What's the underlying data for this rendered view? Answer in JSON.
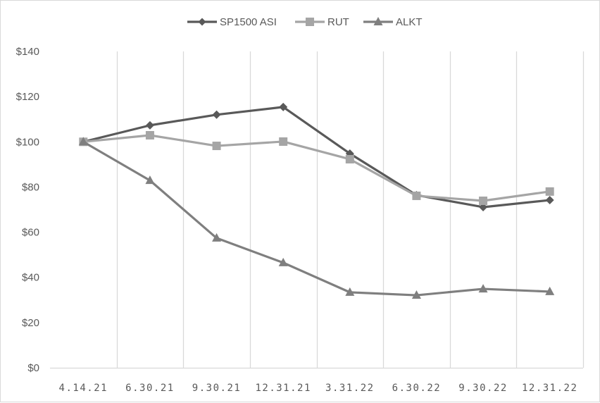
{
  "chart_data": {
    "type": "line",
    "title": "",
    "xlabel": "",
    "ylabel": "",
    "categories": [
      "4.14.21",
      "6.30.21",
      "9.30.21",
      "12.31.21",
      "3.31.22",
      "6.30.22",
      "9.30.22",
      "12.31.22"
    ],
    "series": [
      {
        "name": "SP1500 ASI",
        "color": "#595959",
        "marker": "diamond",
        "values": [
          100,
          107.3,
          112.0,
          115.4,
          94.8,
          76.4,
          71.1,
          74.2
        ]
      },
      {
        "name": "RUT",
        "color": "#a5a5a5",
        "marker": "square",
        "values": [
          100,
          102.9,
          98.2,
          100.1,
          92.3,
          76.1,
          73.9,
          78.0
        ]
      },
      {
        "name": "ALKT",
        "color": "#7f7f7f",
        "marker": "triangle",
        "values": [
          100,
          82.9,
          57.4,
          46.5,
          33.4,
          32.1,
          34.9,
          33.7
        ]
      }
    ],
    "ylim": [
      0,
      140
    ],
    "yticks": [
      "$0",
      "$20",
      "$40",
      "$60",
      "$80",
      "$100",
      "$120",
      "$140"
    ],
    "ytick_values": [
      0,
      20,
      40,
      60,
      80,
      100,
      120,
      140
    ],
    "grid": "vertical category separators",
    "legend_position": "top"
  },
  "legend": {
    "items": [
      "SP1500 ASI",
      "RUT",
      "ALKT"
    ]
  }
}
